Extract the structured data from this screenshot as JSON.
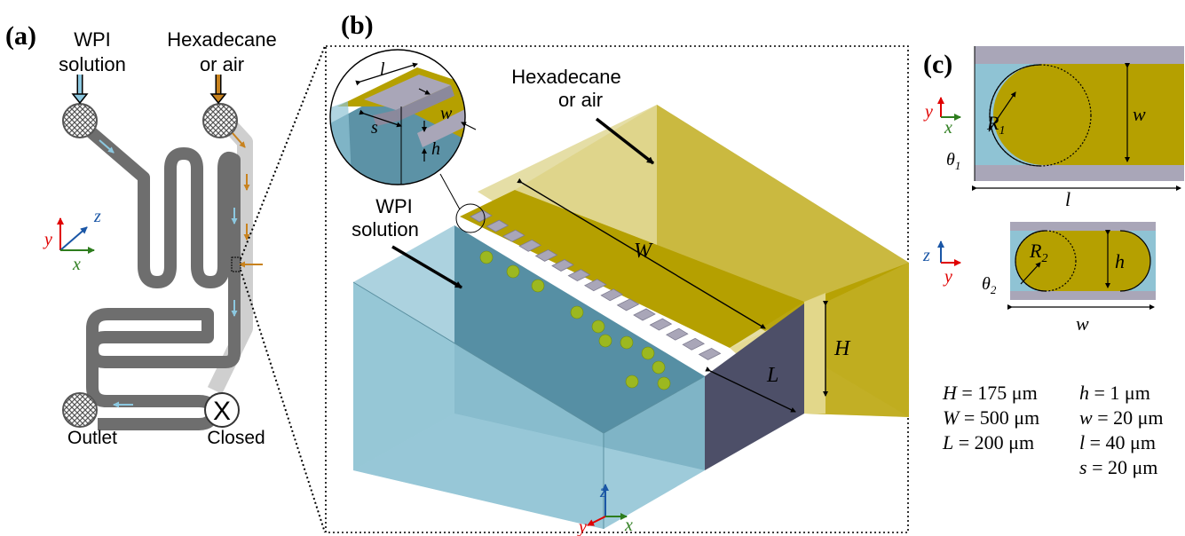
{
  "panel_labels": {
    "a": "(a)",
    "b": "(b)",
    "c": "(c)"
  },
  "panel_a": {
    "inlet_wpi_line1": "WPI",
    "inlet_wpi_line2": "solution",
    "inlet_oil_line1": "Hexadecane",
    "inlet_oil_line2": "or air",
    "outlet": "Outlet",
    "closed": "Closed",
    "closed_mark": "X",
    "axes": {
      "y": "y",
      "z": "z",
      "x": "x"
    }
  },
  "panel_b": {
    "oil_line1": "Hexadecane",
    "oil_line2": "or air",
    "wpi_line1": "WPI",
    "wpi_line2": "solution",
    "dim_W": "W",
    "dim_L": "L",
    "dim_H": "H",
    "inset": {
      "l": "l",
      "w": "w",
      "s": "s",
      "h": "h"
    },
    "axes": {
      "z": "z",
      "y": "y",
      "x": "x"
    }
  },
  "panel_c": {
    "top": {
      "R": "R",
      "R_sub": "1",
      "theta": "θ",
      "theta_sub": "1",
      "w": "w",
      "l": "l",
      "axis_y": "y",
      "axis_x": "x"
    },
    "bottom": {
      "R": "R",
      "R_sub": "2",
      "theta": "θ",
      "theta_sub": "2",
      "h": "h",
      "w": "w",
      "axis_z": "z",
      "axis_y": "y"
    }
  },
  "params": [
    {
      "sym": "H",
      "eq": " = 175 μm"
    },
    {
      "sym": "W",
      "eq": " = 500 μm"
    },
    {
      "sym": "L",
      "eq": " = 200 μm"
    },
    {
      "sym": "h",
      "eq": " = 1 μm"
    },
    {
      "sym": "w",
      "eq": " = 20 μm"
    },
    {
      "sym": "l",
      "eq": " = 40 μm"
    },
    {
      "sym": "s",
      "eq": " = 20 μm"
    }
  ],
  "colors": {
    "oil": "#b5a000",
    "oil_light": "#e2d78a",
    "water": "#8fc3d4",
    "water_dark": "#3f7f96",
    "step": "#a9a6b8",
    "wall_dark": "#4d4f68",
    "droplet": "#9cb820",
    "channel": "#6e6e6e",
    "channel_light": "#cfcfcf",
    "axis_red": "#e00000",
    "axis_blue": "#1a56a6",
    "axis_green": "#2e7d1e",
    "arrow_orange": "#c8821e",
    "arrow_blue": "#8cc8e0"
  }
}
